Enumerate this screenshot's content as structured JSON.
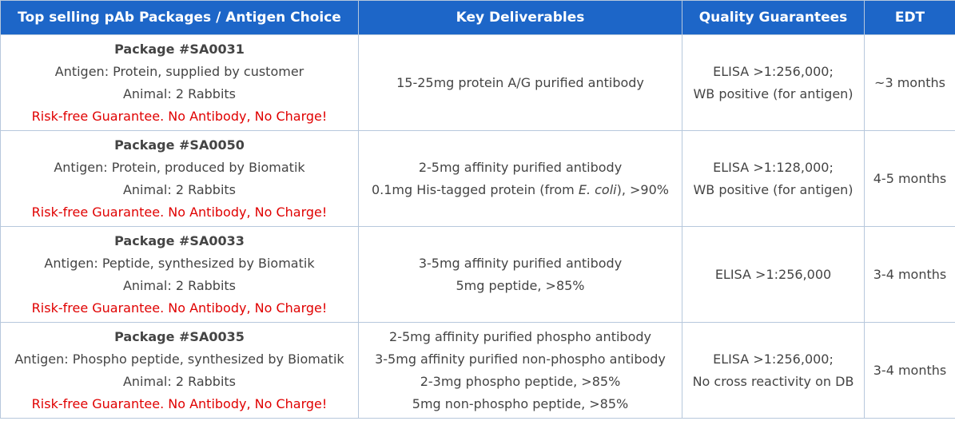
{
  "headers": {
    "packages": "Top selling pAb Packages / Antigen Choice",
    "deliverables": "Key Deliverables",
    "quality": "Quality Guarantees",
    "edt": "EDT"
  },
  "rows": [
    {
      "package": "Package #SA0031",
      "antigen": "Antigen: Protein, supplied by customer",
      "animal": "Animal: 2 Rabbits",
      "guarantee": "Risk-free Guarantee. No Antibody, No Charge!",
      "deliverables": [
        "15-25mg protein A/G purified antibody"
      ],
      "quality": [
        "ELISA >1:256,000;",
        "WB positive (for antigen)"
      ],
      "edt": "~3 months"
    },
    {
      "package": "Package #SA0050",
      "antigen": "Antigen: Protein, produced by Biomatik",
      "animal": "Animal: 2 Rabbits",
      "guarantee": "Risk-free Guarantee. No Antibody, No Charge!",
      "deliverables": [
        "2-5mg affinity purified antibody",
        "0.1mg His-tagged protein (from ",
        "E. coli",
        "), >90%"
      ],
      "quality": [
        "ELISA >1:128,000;",
        "WB positive (for antigen)"
      ],
      "edt": "4-5 months"
    },
    {
      "package": "Package #SA0033",
      "antigen": "Antigen: Peptide, synthesized by Biomatik",
      "animal": "Animal: 2 Rabbits",
      "guarantee": "Risk-free Guarantee. No Antibody, No Charge!",
      "deliverables": [
        "3-5mg affinity purified antibody",
        "5mg peptide, >85%"
      ],
      "quality": [
        "ELISA >1:256,000"
      ],
      "edt": "3-4 months"
    },
    {
      "package": "Package #SA0035",
      "antigen": "Antigen: Phospho peptide, synthesized by Biomatik",
      "animal": "Animal: 2 Rabbits",
      "guarantee": "Risk-free Guarantee. No Antibody, No Charge!",
      "deliverables": [
        "2-5mg affinity purified phospho antibody",
        "3-5mg affinity purified non-phospho antibody",
        "2-3mg phospho peptide, >85%",
        "5mg non-phospho peptide, >85%"
      ],
      "quality": [
        "ELISA >1:256,000;",
        "No cross reactivity on DB"
      ],
      "edt": "3-4 months"
    }
  ]
}
